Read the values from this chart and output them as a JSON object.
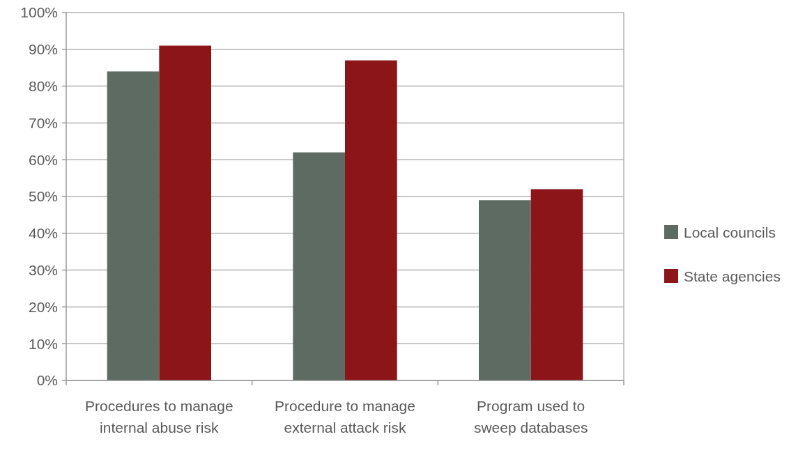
{
  "chart_data": {
    "type": "bar",
    "categories": [
      "Procedures to manage internal abuse risk",
      "Procedure to manage external attack risk",
      "Program used to sweep databases"
    ],
    "series": [
      {
        "name": "Local councils",
        "color": "#5e6b63",
        "values": [
          84,
          62,
          49
        ]
      },
      {
        "name": "State agencies",
        "color": "#8b1519",
        "values": [
          91,
          87,
          52
        ]
      }
    ],
    "ylim": [
      0,
      100
    ],
    "yticks": [
      {
        "value": 0,
        "label": "0%"
      },
      {
        "value": 10,
        "label": "10%"
      },
      {
        "value": 20,
        "label": "20%"
      },
      {
        "value": 30,
        "label": "30%"
      },
      {
        "value": 40,
        "label": "40%"
      },
      {
        "value": 50,
        "label": "50%"
      },
      {
        "value": 60,
        "label": "60%"
      },
      {
        "value": 70,
        "label": "70%"
      },
      {
        "value": 80,
        "label": "80%"
      },
      {
        "value": 90,
        "label": "90%"
      },
      {
        "value": 100,
        "label": "100%"
      }
    ],
    "grid": "y",
    "legend": "right"
  }
}
